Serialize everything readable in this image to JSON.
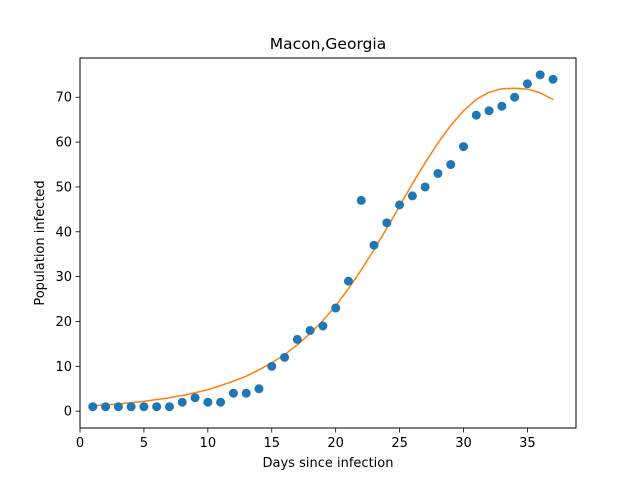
{
  "chart_data": {
    "type": "scatter",
    "title": "Macon,Georgia",
    "xlabel": "Days since infection",
    "ylabel": "Population infected",
    "xlim": [
      0,
      38.8
    ],
    "ylim": [
      -3.75,
      78.75
    ],
    "xticks": [
      0,
      5,
      10,
      15,
      20,
      25,
      30,
      35
    ],
    "yticks": [
      0,
      10,
      20,
      30,
      40,
      50,
      60,
      70
    ],
    "grid": false,
    "legend": "none",
    "series": [
      {
        "kind": "scatter",
        "color": "#1f77b4",
        "x": [
          1,
          2,
          3,
          4,
          5,
          6,
          7,
          8,
          9,
          10,
          11,
          12,
          13,
          14,
          15,
          16,
          17,
          18,
          19,
          20,
          21,
          22,
          23,
          24,
          25,
          26,
          27,
          28,
          29,
          30,
          31,
          32,
          33,
          34,
          35,
          36,
          37
        ],
        "y": [
          1,
          1,
          1,
          1,
          1,
          1,
          1,
          2,
          3,
          2,
          2,
          4,
          4,
          5,
          10,
          12,
          16,
          18,
          19,
          23,
          29,
          47,
          37,
          42,
          46,
          48,
          50,
          53,
          55,
          59,
          66,
          67,
          68,
          70,
          73,
          75,
          74
        ]
      },
      {
        "kind": "line",
        "color": "#ff7f0e",
        "x": [
          1,
          2,
          3,
          4,
          5,
          6,
          7,
          8,
          9,
          10,
          11,
          12,
          13,
          14,
          15,
          16,
          17,
          18,
          19,
          20,
          21,
          22,
          23,
          24,
          25,
          26,
          27,
          28,
          29,
          30,
          31,
          32,
          33,
          34,
          35,
          36,
          37
        ],
        "y": [
          1.2,
          1.4,
          1.6,
          1.9,
          2.2,
          2.6,
          3.0,
          3.5,
          4.1,
          4.8,
          5.7,
          6.7,
          7.8,
          9.2,
          10.8,
          12.6,
          14.8,
          17.3,
          20.2,
          23.5,
          27.3,
          31.5,
          36.0,
          40.8,
          45.7,
          50.7,
          55.4,
          59.8,
          63.7,
          67.0,
          69.5,
          71.1,
          71.9,
          72.0,
          71.8,
          71.0,
          69.5
        ]
      }
    ]
  }
}
